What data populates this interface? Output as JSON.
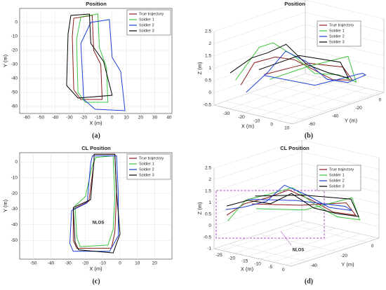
{
  "chart_data": [
    {
      "type": "line",
      "title": "Position",
      "caption": "(a)",
      "xlabel": "X (m)",
      "ylabel": "Y (m)",
      "xlim": [
        -65,
        42
      ],
      "ylim": [
        -65,
        10
      ],
      "xticks": [
        -60,
        -50,
        -40,
        -30,
        -20,
        -10,
        0,
        10,
        20,
        30,
        40
      ],
      "yticks": [
        -60,
        -50,
        -40,
        -30,
        -20,
        -10,
        0
      ],
      "grid": true,
      "legend": "upper right",
      "series": [
        {
          "name": "True trajectory",
          "color": "#8b1a1a",
          "x": [
            -27,
            -28,
            -27,
            -14,
            -13,
            -8,
            -7,
            -22,
            -27
          ],
          "values": [
            -48,
            -10,
            3,
            5,
            -20,
            -30,
            -55,
            -55,
            -48
          ]
        },
        {
          "name": "Soldier 1",
          "color": "#3cc43c",
          "x": [
            -24,
            -25,
            -22,
            -10,
            -9,
            -4,
            -3,
            -19,
            -24
          ],
          "values": [
            -50,
            -12,
            4,
            6,
            -18,
            -32,
            -57,
            -57,
            -50
          ]
        },
        {
          "name": "Soldier 2",
          "color": "#1f3fd6",
          "x": [
            -20,
            -22,
            -15,
            -2,
            0,
            6,
            9,
            -12,
            -20
          ],
          "values": [
            -55,
            -15,
            0,
            2,
            -25,
            -35,
            -63,
            -62,
            -55
          ]
        },
        {
          "name": "Soldier 3",
          "color": "#000000",
          "x": [
            -32,
            -31,
            -29,
            -16,
            -15,
            -6,
            0,
            -24,
            -32
          ],
          "values": [
            -45,
            -8,
            5,
            6,
            -15,
            -28,
            -52,
            -54,
            -45
          ]
        }
      ]
    },
    {
      "type": "line3d",
      "title": "Position",
      "caption": "(b)",
      "xlabel": "X (m)",
      "ylabel": "Y (m)",
      "zlabel": "Z (m)",
      "xlim": [
        -40,
        12
      ],
      "ylim": [
        -70,
        8
      ],
      "zlim": [
        -0.5,
        2.5
      ],
      "xticks": [
        -30,
        -20,
        -10,
        0,
        10
      ],
      "yticks": [
        -60,
        -40,
        -20,
        0
      ],
      "zticks": [
        -0.5,
        0,
        0.5,
        1,
        1.5,
        2,
        2.5
      ],
      "grid": true,
      "legend": "upper right",
      "series": [
        {
          "name": "True trajectory",
          "color": "#8b1a1a",
          "x": [
            -30,
            -25,
            -15,
            -10,
            -5,
            0,
            5,
            -5,
            -20,
            -30
          ],
          "y": [
            -60,
            -55,
            -50,
            -40,
            -30,
            -20,
            -10,
            -5,
            -15,
            -40
          ],
          "z": [
            0.3,
            1.2,
            1.5,
            1.3,
            0.8,
            0.3,
            0.2,
            0.5,
            0.6,
            0.4
          ]
        },
        {
          "name": "Soldier 1",
          "color": "#3cc43c",
          "x": [
            -32,
            -24,
            -18,
            -12,
            -6,
            2,
            6,
            -4,
            -22,
            -28
          ],
          "y": [
            -62,
            -52,
            -48,
            -38,
            -28,
            -18,
            -8,
            -2,
            -12,
            -38
          ],
          "z": [
            0.5,
            1.8,
            2.0,
            1.4,
            0.6,
            0.5,
            0.1,
            0.9,
            0.4,
            0.2
          ]
        },
        {
          "name": "Soldier 2",
          "color": "#1f3fd6",
          "x": [
            -28,
            -20,
            -12,
            -6,
            0,
            6,
            10,
            4,
            -12,
            -26
          ],
          "y": [
            -58,
            -50,
            -45,
            -35,
            -25,
            -15,
            -5,
            0,
            -20,
            -45
          ],
          "z": [
            0.0,
            0.8,
            1.7,
            1.2,
            0.4,
            0.2,
            0.4,
            0.3,
            -0.1,
            0.5
          ]
        },
        {
          "name": "Soldier 3",
          "color": "#000000",
          "x": [
            -34,
            -26,
            -20,
            -14,
            -8,
            -2,
            4,
            -6,
            -24,
            -32
          ],
          "y": [
            -64,
            -56,
            -50,
            -42,
            -32,
            -22,
            -12,
            -6,
            -18,
            -42
          ],
          "z": [
            0.8,
            1.4,
            1.6,
            1.9,
            1.0,
            0.6,
            0.3,
            0.7,
            0.9,
            0.6
          ]
        }
      ]
    },
    {
      "type": "line",
      "title": "CL Position",
      "caption": "(c)",
      "xlabel": "X (m)",
      "ylabel": "Y (m)",
      "annotation": "NLOS",
      "xlim": [
        -58,
        30
      ],
      "ylim": [
        -62,
        6
      ],
      "xticks": [
        -50,
        -40,
        -30,
        -20,
        -10,
        0,
        10,
        20
      ],
      "yticks": [
        -50,
        -40,
        -30,
        -20,
        -10,
        0
      ],
      "grid": true,
      "legend": "upper right",
      "series": [
        {
          "name": "True trajectory",
          "color": "#8b1a1a",
          "x": [
            -27,
            -27,
            -18,
            -15,
            -15,
            -3,
            -2,
            -3,
            -5,
            -25,
            -27
          ],
          "values": [
            -50,
            -30,
            -25,
            0,
            5,
            5,
            -20,
            -45,
            -55,
            -55,
            -50
          ]
        },
        {
          "name": "Soldier 1",
          "color": "#3cc43c",
          "x": [
            -25,
            -26,
            -20,
            -16,
            -14,
            -4,
            -3,
            -4,
            -7,
            -23,
            -25
          ],
          "values": [
            -48,
            -28,
            -22,
            -2,
            3,
            4,
            -22,
            -43,
            -53,
            -54,
            -48
          ]
        },
        {
          "name": "Soldier 2",
          "color": "#1f3fd6",
          "x": [
            -29,
            -28,
            -19,
            -17,
            -16,
            -2,
            -1,
            -1,
            -6,
            -27,
            -29
          ],
          "values": [
            -52,
            -31,
            -26,
            -1,
            4,
            4,
            -21,
            -47,
            -57,
            -57,
            -52
          ]
        },
        {
          "name": "Soldier 3",
          "color": "#000000",
          "x": [
            -26,
            -27,
            -17,
            -15,
            -15,
            -3,
            -2,
            0,
            -4,
            -24,
            -26
          ],
          "values": [
            -51,
            -29,
            -24,
            1,
            5,
            5,
            -19,
            -46,
            -58,
            -56,
            -51
          ]
        }
      ]
    },
    {
      "type": "line3d",
      "title": "CL Position",
      "caption": "(d)",
      "xlabel": "X (m)",
      "ylabel": "Y (m)",
      "zlabel": "Z (m)",
      "annotation": "NLOS",
      "xlim": [
        -28,
        2
      ],
      "ylim": [
        -50,
        8
      ],
      "zlim": [
        -1,
        2.5
      ],
      "xticks": [
        -25,
        -20,
        -15,
        -10,
        -5,
        0
      ],
      "yticks": [
        -40,
        -20,
        0
      ],
      "zticks": [
        -1,
        -0.5,
        0,
        0.5,
        1,
        1.5,
        2,
        2.5
      ],
      "grid": true,
      "legend": "upper right",
      "series": [
        {
          "name": "True trajectory",
          "color": "#8b1a1a",
          "x": [
            -26,
            -22,
            -16,
            -12,
            -8,
            -4,
            0,
            -6,
            -18,
            -25
          ],
          "y": [
            -45,
            -40,
            -35,
            -28,
            -20,
            -12,
            -4,
            0,
            -10,
            -30
          ],
          "z": [
            0.4,
            0.9,
            1.2,
            1.5,
            1.0,
            0.4,
            0.2,
            0.5,
            0.3,
            0.6
          ]
        },
        {
          "name": "Soldier 1",
          "color": "#3cc43c",
          "x": [
            -25,
            -21,
            -15,
            -11,
            -7,
            -3,
            1,
            -5,
            -17,
            -24
          ],
          "y": [
            -46,
            -41,
            -36,
            -27,
            -19,
            -11,
            -3,
            2,
            -9,
            -29
          ],
          "z": [
            0.2,
            1.1,
            1.4,
            1.6,
            0.8,
            0.2,
            0.0,
            0.7,
            0.1,
            0.4
          ]
        },
        {
          "name": "Soldier 2",
          "color": "#1f3fd6",
          "x": [
            -27,
            -23,
            -17,
            -13,
            -9,
            -5,
            -1,
            -7,
            -19,
            -26
          ],
          "y": [
            -44,
            -39,
            -34,
            -29,
            -21,
            -13,
            -5,
            1,
            -11,
            -31
          ],
          "z": [
            0.6,
            0.7,
            1.0,
            1.7,
            1.2,
            0.6,
            0.4,
            0.3,
            0.5,
            0.8
          ]
        },
        {
          "name": "Soldier 3",
          "color": "#000000",
          "x": [
            -26,
            -22,
            -16,
            -12,
            -8,
            -4,
            0,
            -6,
            -18,
            -25
          ],
          "y": [
            -45,
            -38,
            -33,
            -26,
            -18,
            -10,
            -2,
            3,
            -8,
            -28
          ],
          "z": [
            0.8,
            1.0,
            0.9,
            1.3,
            0.6,
            0.3,
            0.1,
            0.6,
            0.7,
            0.9
          ]
        }
      ]
    }
  ]
}
